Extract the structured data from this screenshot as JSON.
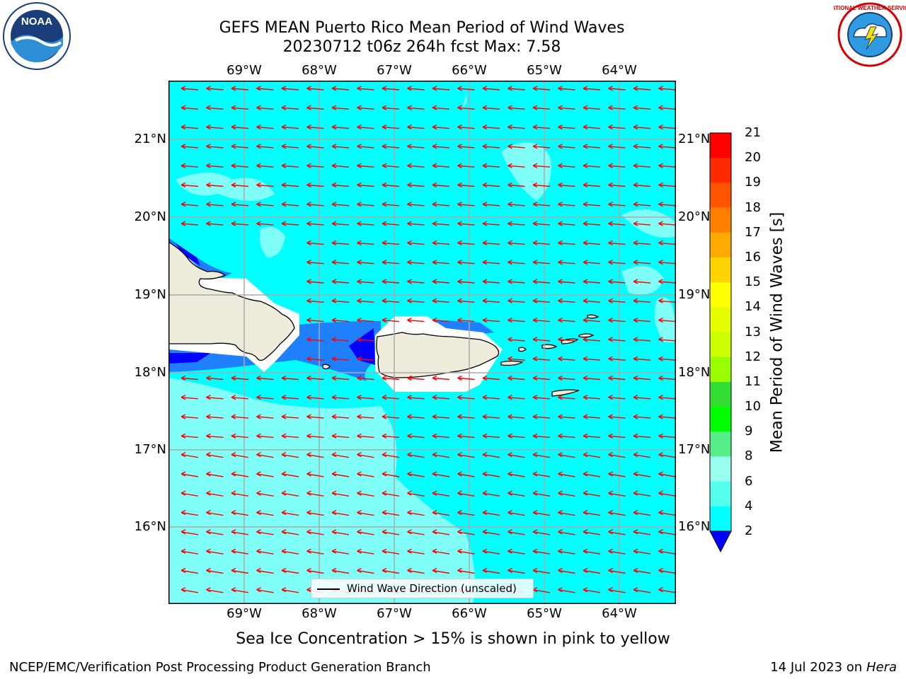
{
  "title": {
    "line1": "GEFS MEAN Puerto Rico Mean Period of Wind Waves",
    "line2": "20230712 t06z 264h fcst   Max: 7.58"
  },
  "logos": {
    "left": {
      "name": "noaa-logo",
      "text": "NOAA"
    },
    "right": {
      "name": "national-weather-service-logo",
      "text": "NATIONAL WEATHER SERVICE"
    }
  },
  "axes": {
    "lon_labels": [
      "69°W",
      "68°W",
      "67°W",
      "66°W",
      "65°W",
      "64°W"
    ],
    "lat_labels": [
      "21°N",
      "20°N",
      "19°N",
      "18°N",
      "17°N",
      "16°N"
    ]
  },
  "colorbar": {
    "title": "Mean Period of Wind Waves [s]",
    "ticks": [
      "21",
      "20",
      "19",
      "18",
      "17",
      "16",
      "15",
      "14",
      "13",
      "12",
      "11",
      "10",
      "9",
      "8",
      "6",
      "4",
      "2"
    ],
    "colors": [
      "#ff0000",
      "#ff2a00",
      "#ff5500",
      "#ff8000",
      "#ffaa00",
      "#ffd400",
      "#ffff00",
      "#e6ff00",
      "#ccff00",
      "#99ff00",
      "#33dd33",
      "#00ff00",
      "#55ee88",
      "#99ffee",
      "#55ffee",
      "#00ffff",
      "#1e7fff"
    ],
    "extend_color": "#0000ff"
  },
  "legend": {
    "label": "Wind Wave Direction (unscaled)"
  },
  "note": "Sea Ice Concentration > 15% is shown in pink to yellow",
  "footer": {
    "left": "NCEP/EMC/Verification Post Processing Product Generation Branch",
    "date": "14 Jul 2023 on ",
    "host": "Hera"
  },
  "map_colors": {
    "ocean": "#00ffff",
    "light_band": "#7ffff7",
    "mid_blue": "#1e7fff",
    "deep_blue": "#0000ff",
    "land": "#efecdc",
    "arrow": "#ff0000",
    "grid": "#aaaaaa"
  }
}
